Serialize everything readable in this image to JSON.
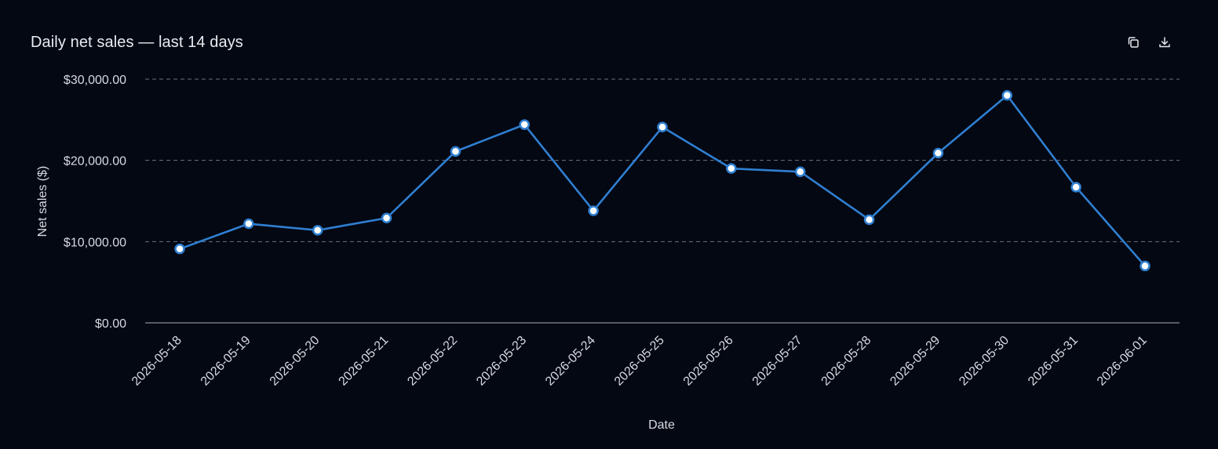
{
  "title": "Daily net sales — last 14 days",
  "toolbar": {
    "copy_icon": "copy-icon",
    "download_icon": "download-icon"
  },
  "colors": {
    "background": "#040813",
    "line": "#2f7fd1",
    "marker_fill": "#ffffff",
    "grid": "#6b7080",
    "axis_text": "#d7dae2"
  },
  "chart_data": {
    "type": "line",
    "title": "Daily net sales — last 14 days",
    "xlabel": "Date",
    "ylabel": "Net sales ($)",
    "x": [
      "2026-05-18",
      "2026-05-19",
      "2026-05-20",
      "2026-05-21",
      "2026-05-22",
      "2026-05-23",
      "2026-05-24",
      "2026-05-25",
      "2026-05-26",
      "2026-05-27",
      "2026-05-28",
      "2026-05-29",
      "2026-05-30",
      "2026-05-31",
      "2026-06-01"
    ],
    "series": [
      {
        "values": [
          9100,
          12200,
          11400,
          12900,
          21100,
          24400,
          13800,
          24100,
          19000,
          18600,
          12700,
          20900,
          28000,
          16700,
          7000
        ]
      }
    ],
    "ylim": [
      0,
      30000
    ],
    "yticks": [
      0,
      10000,
      20000,
      30000
    ],
    "ytick_labels": [
      "$0.00",
      "$10,000.00",
      "$20,000.00",
      "$30,000.00"
    ],
    "grid": true,
    "legend": "none"
  }
}
